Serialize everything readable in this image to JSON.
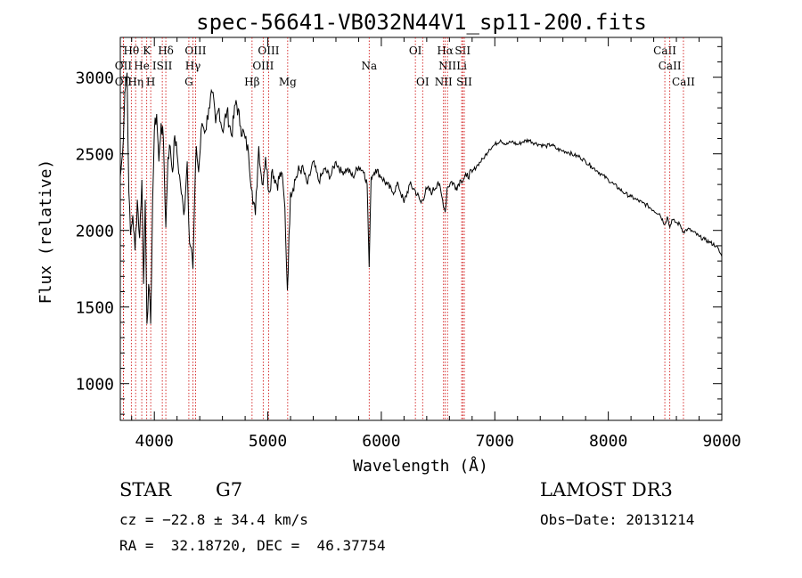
{
  "chart_data": {
    "type": "line",
    "title": "spec-56641-VB032N44V1_sp11-200.fits",
    "xlabel": "Wavelength (Å)",
    "ylabel": "Flux (relative)",
    "xlim": [
      3700,
      9000
    ],
    "ylim": [
      760,
      3260
    ],
    "x_ticks": [
      4000,
      5000,
      6000,
      7000,
      8000,
      9000
    ],
    "x_tick_labels": [
      "4000",
      "5000",
      "6000",
      "7000",
      "8000",
      "9000"
    ],
    "y_ticks": [
      1000,
      1500,
      2000,
      2500,
      3000
    ],
    "y_tick_labels": [
      "1000",
      "1500",
      "2000",
      "2500",
      "3000"
    ],
    "series": [
      {
        "name": "flux",
        "color": "#000000",
        "points": [
          [
            3700,
            2350
          ],
          [
            3720,
            2500
          ],
          [
            3740,
            2900
          ],
          [
            3760,
            3030
          ],
          [
            3775,
            2250
          ],
          [
            3790,
            1970
          ],
          [
            3810,
            2100
          ],
          [
            3830,
            1870
          ],
          [
            3850,
            2200
          ],
          [
            3870,
            1950
          ],
          [
            3890,
            2330
          ],
          [
            3905,
            1650
          ],
          [
            3920,
            2200
          ],
          [
            3935,
            1390
          ],
          [
            3950,
            1650
          ],
          [
            3968,
            1390
          ],
          [
            3985,
            2200
          ],
          [
            4000,
            2650
          ],
          [
            4020,
            2760
          ],
          [
            4040,
            2450
          ],
          [
            4060,
            2700
          ],
          [
            4080,
            2590
          ],
          [
            4101,
            2020
          ],
          [
            4120,
            2480
          ],
          [
            4140,
            2550
          ],
          [
            4160,
            2380
          ],
          [
            4180,
            2620
          ],
          [
            4200,
            2500
          ],
          [
            4230,
            2300
          ],
          [
            4260,
            2100
          ],
          [
            4290,
            2450
          ],
          [
            4310,
            1920
          ],
          [
            4325,
            1890
          ],
          [
            4340,
            1750
          ],
          [
            4355,
            2200
          ],
          [
            4370,
            2550
          ],
          [
            4390,
            2380
          ],
          [
            4420,
            2700
          ],
          [
            4450,
            2650
          ],
          [
            4480,
            2800
          ],
          [
            4510,
            2900
          ],
          [
            4540,
            2700
          ],
          [
            4570,
            2800
          ],
          [
            4600,
            2650
          ],
          [
            4640,
            2780
          ],
          [
            4680,
            2620
          ],
          [
            4720,
            2850
          ],
          [
            4760,
            2680
          ],
          [
            4800,
            2600
          ],
          [
            4830,
            2500
          ],
          [
            4861,
            2260
          ],
          [
            4890,
            2100
          ],
          [
            4920,
            2550
          ],
          [
            4950,
            2300
          ],
          [
            4980,
            2480
          ],
          [
            5010,
            2250
          ],
          [
            5040,
            2400
          ],
          [
            5080,
            2300
          ],
          [
            5120,
            2380
          ],
          [
            5150,
            2150
          ],
          [
            5172,
            1610
          ],
          [
            5200,
            2250
          ],
          [
            5250,
            2350
          ],
          [
            5300,
            2420
          ],
          [
            5350,
            2300
          ],
          [
            5400,
            2450
          ],
          [
            5450,
            2320
          ],
          [
            5500,
            2400
          ],
          [
            5550,
            2350
          ],
          [
            5600,
            2450
          ],
          [
            5650,
            2380
          ],
          [
            5700,
            2400
          ],
          [
            5750,
            2350
          ],
          [
            5800,
            2420
          ],
          [
            5850,
            2380
          ],
          [
            5875,
            2300
          ],
          [
            5893,
            1760
          ],
          [
            5910,
            2350
          ],
          [
            5950,
            2400
          ],
          [
            6000,
            2350
          ],
          [
            6050,
            2300
          ],
          [
            6100,
            2250
          ],
          [
            6150,
            2300
          ],
          [
            6200,
            2180
          ],
          [
            6250,
            2300
          ],
          [
            6300,
            2260
          ],
          [
            6350,
            2180
          ],
          [
            6400,
            2270
          ],
          [
            6450,
            2250
          ],
          [
            6500,
            2320
          ],
          [
            6540,
            2200
          ],
          [
            6563,
            2120
          ],
          [
            6580,
            2280
          ],
          [
            6620,
            2320
          ],
          [
            6660,
            2280
          ],
          [
            6700,
            2330
          ],
          [
            6750,
            2350
          ],
          [
            6800,
            2380
          ],
          [
            6850,
            2430
          ],
          [
            6900,
            2470
          ],
          [
            6950,
            2530
          ],
          [
            7000,
            2560
          ],
          [
            7050,
            2590
          ],
          [
            7100,
            2560
          ],
          [
            7150,
            2580
          ],
          [
            7200,
            2560
          ],
          [
            7250,
            2580
          ],
          [
            7300,
            2590
          ],
          [
            7350,
            2570
          ],
          [
            7400,
            2560
          ],
          [
            7450,
            2550
          ],
          [
            7500,
            2560
          ],
          [
            7550,
            2530
          ],
          [
            7600,
            2520
          ],
          [
            7650,
            2510
          ],
          [
            7700,
            2490
          ],
          [
            7750,
            2480
          ],
          [
            7800,
            2450
          ],
          [
            7850,
            2420
          ],
          [
            7900,
            2390
          ],
          [
            7950,
            2360
          ],
          [
            8000,
            2330
          ],
          [
            8050,
            2300
          ],
          [
            8100,
            2270
          ],
          [
            8150,
            2240
          ],
          [
            8200,
            2220
          ],
          [
            8250,
            2200
          ],
          [
            8300,
            2180
          ],
          [
            8350,
            2160
          ],
          [
            8400,
            2130
          ],
          [
            8450,
            2110
          ],
          [
            8498,
            2040
          ],
          [
            8520,
            2090
          ],
          [
            8542,
            2020
          ],
          [
            8560,
            2070
          ],
          [
            8600,
            2050
          ],
          [
            8630,
            2040
          ],
          [
            8662,
            1990
          ],
          [
            8700,
            2010
          ],
          [
            8750,
            1990
          ],
          [
            8800,
            1960
          ],
          [
            8850,
            1940
          ],
          [
            8900,
            1920
          ],
          [
            8950,
            1900
          ],
          [
            9000,
            1830
          ]
        ]
      }
    ],
    "line_markers": [
      {
        "label": "Hθ",
        "x": 3797,
        "row": 0
      },
      {
        "label": "K",
        "x": 3933,
        "row": 0
      },
      {
        "label": "Hδ",
        "x": 4101,
        "row": 0
      },
      {
        "label": "OIII",
        "x": 4363,
        "row": 0
      },
      {
        "label": "OIII",
        "x": 5007,
        "row": 0
      },
      {
        "label": "OI",
        "x": 6300,
        "row": 0
      },
      {
        "label": "Hα",
        "x": 6563,
        "row": 0
      },
      {
        "label": "SII",
        "x": 6717,
        "row": 0
      },
      {
        "label": "CaII",
        "x": 8498,
        "row": 0
      },
      {
        "label": "OII",
        "x": 3727,
        "row": 1
      },
      {
        "label": "He",
        "x": 3889,
        "row": 1
      },
      {
        "label": "ISII",
        "x": 4070,
        "row": 1
      },
      {
        "label": "Hγ",
        "x": 4340,
        "row": 1
      },
      {
        "label": "OIII",
        "x": 4959,
        "row": 1
      },
      {
        "label": "Na",
        "x": 5893,
        "row": 1
      },
      {
        "label": "NII",
        "x": 6583,
        "row": 1
      },
      {
        "label": "Li",
        "x": 6708,
        "row": 1
      },
      {
        "label": "CaII",
        "x": 8542,
        "row": 1
      },
      {
        "label": "OII",
        "x": 3727,
        "row": 2
      },
      {
        "label": "Hη",
        "x": 3835,
        "row": 2
      },
      {
        "label": "H",
        "x": 3968,
        "row": 2
      },
      {
        "label": "G",
        "x": 4304,
        "row": 2
      },
      {
        "label": "Hβ",
        "x": 4861,
        "row": 2
      },
      {
        "label": "Mg",
        "x": 5175,
        "row": 2
      },
      {
        "label": "OI",
        "x": 6364,
        "row": 2
      },
      {
        "label": "NII",
        "x": 6548,
        "row": 2
      },
      {
        "label": "SII",
        "x": 6731,
        "row": 2
      },
      {
        "label": "CaII",
        "x": 8662,
        "row": 2
      }
    ],
    "marker_color": "#cc0000"
  },
  "info": {
    "class_label": "STAR",
    "subclass": "G7",
    "survey": "LAMOST DR3",
    "redshift_text": "cz = −22.8 ± 34.4 km/s",
    "obs_date_text": "Obs−Date: 20131214",
    "coords_text": "RA =  32.18720, DEC =  46.37754"
  }
}
